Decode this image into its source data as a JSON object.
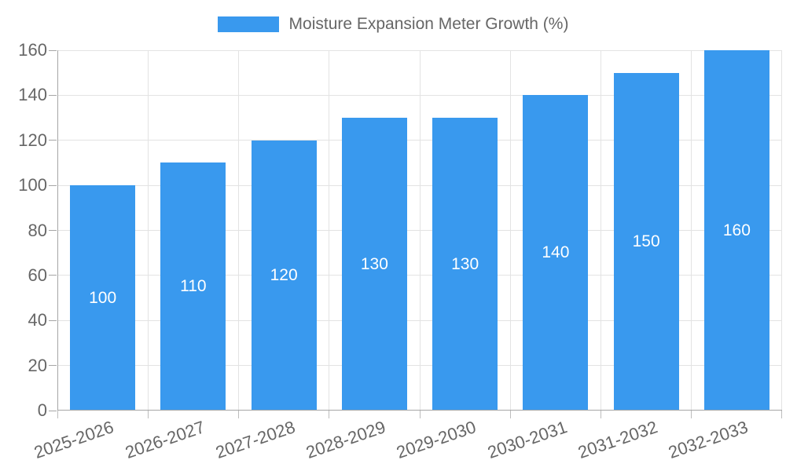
{
  "chart_data": {
    "type": "bar",
    "title": "",
    "legend": {
      "label": "Moisture Expansion Meter Growth (%)",
      "position": "top-center"
    },
    "categories": [
      "2025-2026",
      "2026-2027",
      "2027-2028",
      "2028-2029",
      "2029-2030",
      "2030-2031",
      "2031-2032",
      "2032-2033"
    ],
    "values": [
      100,
      110,
      120,
      130,
      130,
      140,
      150,
      160
    ],
    "bar_labels": [
      "100",
      "110",
      "120",
      "130",
      "130",
      "140",
      "150",
      "160"
    ],
    "xlabel": "",
    "ylabel": "",
    "ylim": [
      0,
      160
    ],
    "ytick_step": 20,
    "y_ticks": [
      0,
      20,
      40,
      60,
      80,
      100,
      120,
      140,
      160
    ],
    "grid": true,
    "colors": {
      "bar": "#3999ee",
      "grid": "#e3e3e3",
      "axis": "#a6a6a6",
      "tick_text": "#666666",
      "legend_text": "#666666",
      "bar_label_text": "#ffffff",
      "background": "#ffffff"
    }
  }
}
